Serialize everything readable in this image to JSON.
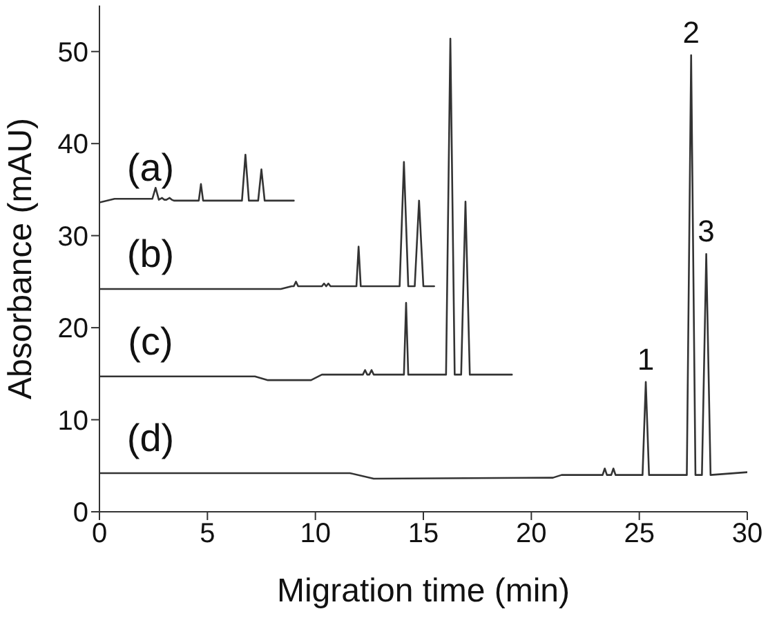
{
  "chart_data": {
    "type": "line",
    "xlabel": "Migration time (min)",
    "ylabel": "Absorbance (mAU)",
    "xlim": [
      0,
      30
    ],
    "ylim": [
      0,
      55
    ],
    "xticks": [
      0,
      5,
      10,
      15,
      20,
      25,
      30
    ],
    "yticks": [
      0,
      10,
      20,
      30,
      40,
      50
    ],
    "series": [
      {
        "name": "(a)",
        "color": "#333333",
        "x": [
          0,
          0.7,
          2.45,
          2.6,
          2.75,
          2.9,
          3.0,
          3.1,
          3.25,
          3.35,
          3.45,
          4.6,
          4.7,
          4.8,
          6.6,
          6.76,
          6.92,
          7.35,
          7.5,
          7.65,
          9.0
        ],
        "values": [
          33.6,
          34.0,
          34.0,
          35.2,
          33.9,
          34.1,
          33.9,
          33.9,
          34.1,
          33.9,
          33.8,
          33.8,
          35.6,
          33.8,
          33.8,
          38.8,
          33.8,
          33.8,
          37.2,
          33.8,
          33.8
        ]
      },
      {
        "name": "(b)",
        "color": "#333333",
        "x": [
          0,
          8.4,
          8.9,
          9.0,
          9.1,
          9.2,
          10.3,
          10.4,
          10.5,
          10.6,
          10.7,
          10.8,
          11.9,
          12.0,
          12.1,
          13.9,
          14.1,
          14.3,
          14.6,
          14.8,
          15.0,
          15.5
        ],
        "values": [
          24.2,
          24.2,
          24.5,
          24.5,
          25.0,
          24.5,
          24.5,
          24.8,
          24.5,
          24.8,
          24.5,
          24.5,
          24.5,
          28.8,
          24.5,
          24.5,
          38.0,
          24.5,
          24.5,
          33.8,
          24.5,
          24.5
        ]
      },
      {
        "name": "(c)",
        "color": "#333333",
        "x": [
          0,
          7.2,
          7.8,
          9.8,
          10.3,
          12.2,
          12.3,
          12.4,
          12.5,
          12.6,
          12.7,
          14.1,
          14.2,
          14.3,
          16.05,
          16.25,
          16.45,
          16.75,
          16.95,
          17.15,
          19.1
        ],
        "values": [
          14.7,
          14.7,
          14.3,
          14.3,
          14.9,
          14.9,
          15.4,
          14.9,
          14.9,
          15.4,
          14.9,
          14.9,
          22.7,
          14.9,
          14.9,
          51.4,
          14.9,
          14.9,
          33.7,
          14.9,
          14.9
        ]
      },
      {
        "name": "(d)",
        "color": "#333333",
        "x": [
          0,
          11.6,
          12.7,
          21.0,
          21.4,
          23.3,
          23.4,
          23.5,
          23.7,
          23.8,
          23.9,
          25.15,
          25.3,
          25.45,
          27.2,
          27.4,
          27.6,
          27.9,
          28.1,
          28.3,
          30
        ],
        "values": [
          4.2,
          4.2,
          3.6,
          3.7,
          4.0,
          4.0,
          4.7,
          4.0,
          4.0,
          4.7,
          4.0,
          4.0,
          14.1,
          4.0,
          4.0,
          49.6,
          4.0,
          4.0,
          28.0,
          4.0,
          4.3
        ]
      }
    ],
    "annotations": [
      {
        "text": "1",
        "x": 25.3,
        "y": 14.1
      },
      {
        "text": "2",
        "x": 27.4,
        "y": 49.6
      },
      {
        "text": "3",
        "x": 28.1,
        "y": 28.0
      }
    ]
  }
}
